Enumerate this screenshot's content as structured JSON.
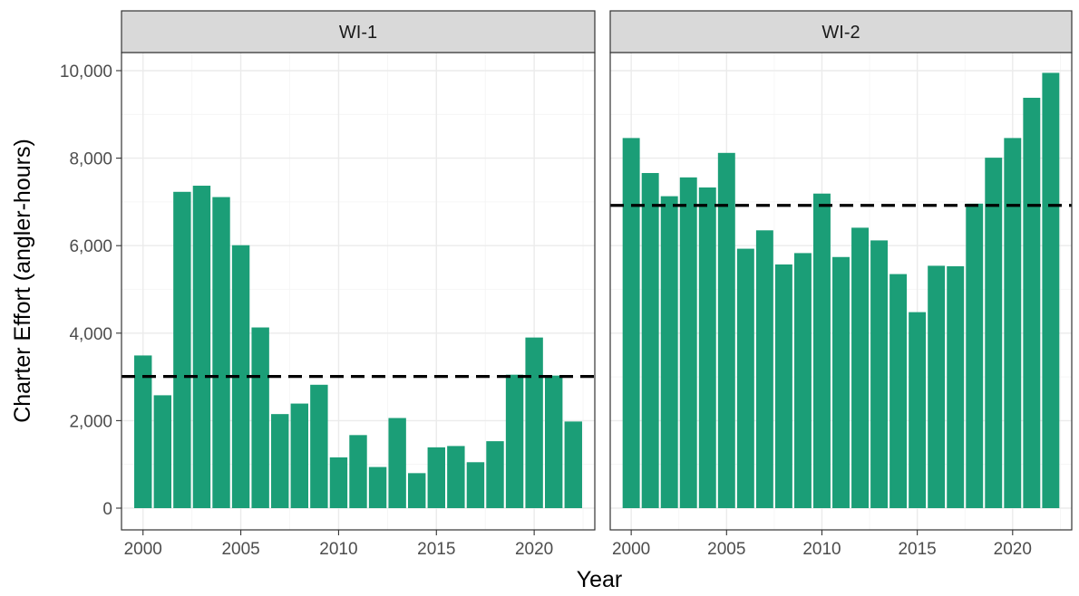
{
  "chart_data": {
    "type": "bar",
    "xlabel": "Year",
    "ylabel": "Charter Effort (angler-hours)",
    "ylim": [
      0,
      10000
    ],
    "yticks": [
      0,
      2000,
      4000,
      6000,
      8000,
      10000
    ],
    "ytick_labels": [
      "0",
      "2,000",
      "4,000",
      "6,000",
      "8,000",
      "10,000"
    ],
    "xticks": [
      2000,
      2005,
      2010,
      2015,
      2020
    ],
    "xtick_labels": [
      "2000",
      "2005",
      "2010",
      "2015",
      "2020"
    ],
    "bar_color": "#1b9e77",
    "grid": true,
    "facets": [
      {
        "label": "WI-1",
        "x": [
          2000,
          2001,
          2002,
          2003,
          2004,
          2005,
          2006,
          2007,
          2008,
          2009,
          2010,
          2011,
          2012,
          2013,
          2014,
          2015,
          2016,
          2017,
          2018,
          2019,
          2020,
          2021,
          2022
        ],
        "values": [
          3490,
          2580,
          7230,
          7370,
          7110,
          6010,
          4130,
          2150,
          2390,
          2820,
          1160,
          1670,
          940,
          2060,
          800,
          1390,
          1420,
          1050,
          1530,
          3050,
          3900,
          3030,
          1980
        ],
        "reference_line": 3010
      },
      {
        "label": "WI-2",
        "x": [
          2000,
          2001,
          2002,
          2003,
          2004,
          2005,
          2006,
          2007,
          2008,
          2009,
          2010,
          2011,
          2012,
          2013,
          2014,
          2015,
          2016,
          2017,
          2018,
          2019,
          2020,
          2021,
          2022
        ],
        "values": [
          8460,
          7660,
          7130,
          7560,
          7330,
          8120,
          5930,
          6350,
          5570,
          5830,
          7190,
          5740,
          6410,
          6120,
          5350,
          4480,
          5540,
          5530,
          6960,
          8010,
          8460,
          9380,
          9950
        ],
        "reference_line": 6920
      }
    ]
  }
}
